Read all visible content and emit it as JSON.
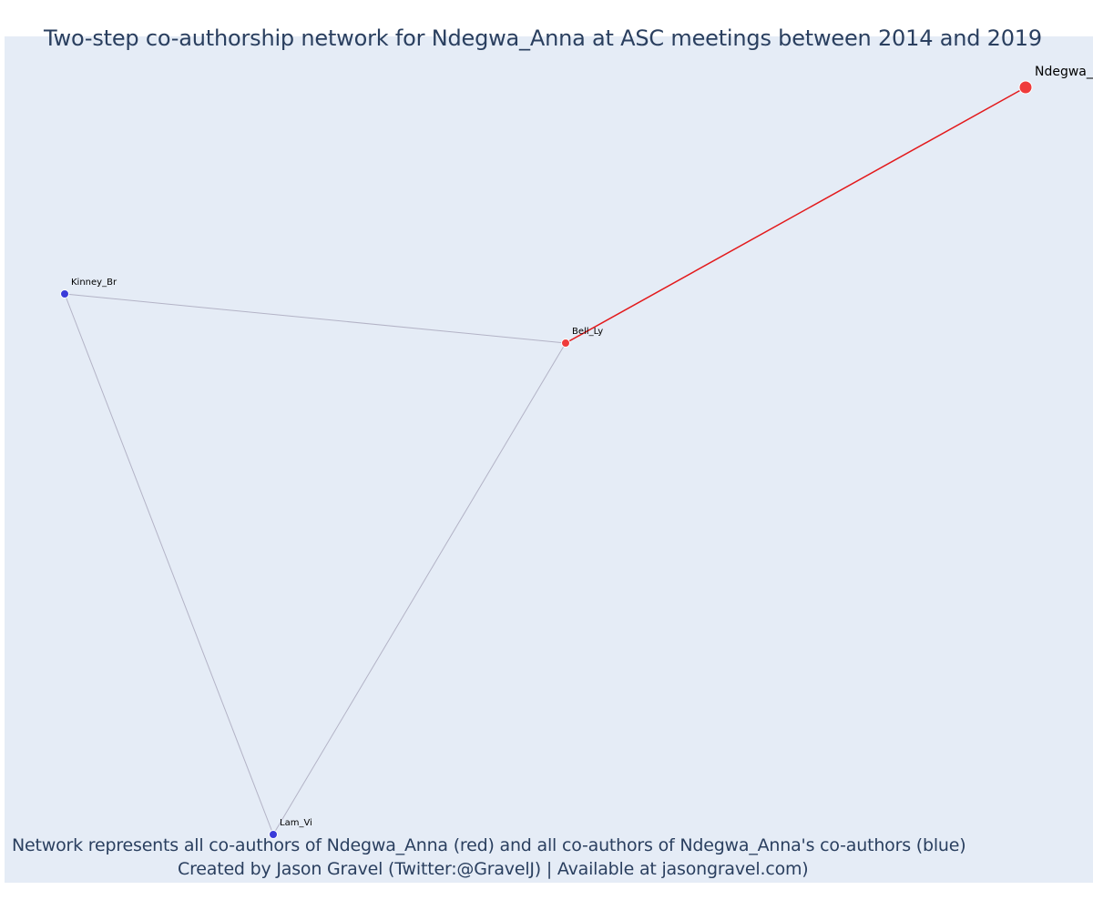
{
  "title": "Two-step co-authorship network for Ndegwa_Anna at ASC meetings between 2014 and 2019",
  "caption": {
    "line1": "Network represents all co-authors of Ndegwa_Anna (red) and all co-authors of Ndegwa_Anna's co-authors (blue)",
    "line2": "Created by Jason Gravel (Twitter:@GravelJ) | Available at jasongravel.com)"
  },
  "colors": {
    "background": "#e5ecf6",
    "focal_node": "#ef3b3b",
    "coauthor_node": "#ef3b3b",
    "second_step_node": "#3b3bd9",
    "focal_edge": "#e31a1c",
    "other_edge": "#b3b3c6",
    "text": "#2a3f5f"
  },
  "nodes": [
    {
      "id": "Ndegwa_Anna",
      "label": "Ndegwa_",
      "group": "focal"
    },
    {
      "id": "Bell_Ly",
      "label": "Bell_Ly",
      "group": "coauthor"
    },
    {
      "id": "Kinney_Br",
      "label": "Kinney_Br",
      "group": "second_step"
    },
    {
      "id": "Lam_Vi",
      "label": "Lam_Vi",
      "group": "second_step"
    }
  ],
  "edges": [
    {
      "source": "Ndegwa_Anna",
      "target": "Bell_Ly",
      "type": "focal"
    },
    {
      "source": "Bell_Ly",
      "target": "Kinney_Br",
      "type": "other"
    },
    {
      "source": "Bell_Ly",
      "target": "Lam_Vi",
      "type": "other"
    },
    {
      "source": "Kinney_Br",
      "target": "Lam_Vi",
      "type": "other"
    }
  ]
}
